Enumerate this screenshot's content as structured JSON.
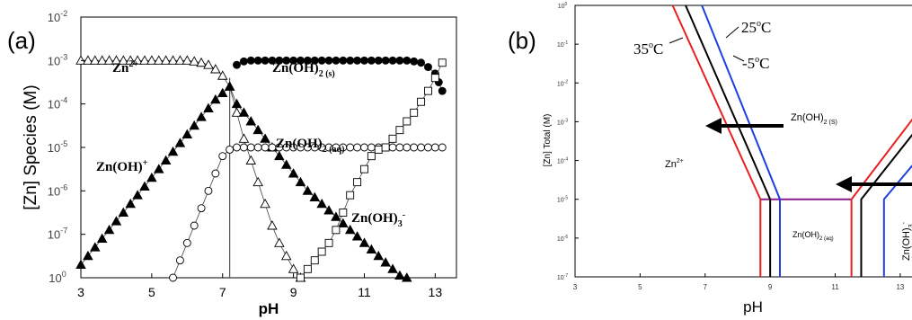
{
  "chart_data": [
    {
      "panel_label": "(a)",
      "type": "scatter",
      "xlabel": "pH",
      "ylabel": "[Zn] Species (M)",
      "xlim": [
        3,
        13.6
      ],
      "ylim_log10": [
        -8,
        -2
      ],
      "x_ticks": [
        "3",
        "5",
        "7",
        "9",
        "11",
        "13"
      ],
      "y_ticks": [
        {
          "base": "10",
          "exp": "-2"
        },
        {
          "base": "10",
          "exp": "-3"
        },
        {
          "base": "10",
          "exp": "-4"
        },
        {
          "base": "10",
          "exp": "-5"
        },
        {
          "base": "10",
          "exp": "-6"
        },
        {
          "base": "10",
          "exp": "-7"
        },
        {
          "base": "10",
          "exp": "0"
        }
      ],
      "vline_x": 7.2,
      "annotations": [
        {
          "label": "Zn2+",
          "base": "Zn",
          "sup": "2+",
          "sub": ""
        },
        {
          "label": "Zn(OH)2 (s)",
          "base": "Zn(OH)",
          "sup": "",
          "sub": "2 (s)"
        },
        {
          "label": "Zn(OH)+",
          "base": "Zn(OH)",
          "sup": "+",
          "sub": ""
        },
        {
          "label": "Zn(OH)2 (aq)",
          "base": "Zn(OH)",
          "sup": "",
          "sub": "2 (aq)"
        },
        {
          "label": "Zn(OH)3-",
          "base": "Zn(OH)",
          "sup": "-",
          "sub": "3"
        }
      ],
      "series": [
        {
          "marker": "open-triangle",
          "label_ref": "Zn2+",
          "x": [
            3.0,
            3.2,
            3.4,
            3.6,
            3.8,
            4.0,
            4.2,
            4.4,
            4.6,
            4.8,
            5.0,
            5.2,
            5.4,
            5.6,
            5.8,
            6.0,
            6.2,
            6.4,
            6.6,
            6.8,
            7.0,
            7.2,
            7.4,
            7.6,
            7.8,
            8.0,
            8.2,
            8.4,
            8.6,
            8.8,
            9.0,
            9.2
          ],
          "y": [
            -3.0,
            -3.0,
            -3.0,
            -3.0,
            -3.0,
            -3.0,
            -3.0,
            -3.0,
            -3.0,
            -3.0,
            -3.0,
            -3.0,
            -3.0,
            -3.0,
            -3.0,
            -3.0,
            -3.02,
            -3.05,
            -3.1,
            -3.2,
            -3.35,
            -3.6,
            -4.2,
            -4.8,
            -5.3,
            -5.8,
            -6.3,
            -6.8,
            -7.2,
            -7.5,
            -7.8,
            -8.0
          ]
        },
        {
          "marker": "filled-triangle",
          "label_ref": "Zn(OH)+",
          "x": [
            3.0,
            3.2,
            3.4,
            3.6,
            3.8,
            4.0,
            4.2,
            4.4,
            4.6,
            4.8,
            5.0,
            5.2,
            5.4,
            5.6,
            5.8,
            6.0,
            6.2,
            6.4,
            6.6,
            6.8,
            7.0,
            7.2,
            7.4,
            7.6,
            7.8,
            8.0,
            8.2,
            8.4,
            8.6,
            8.8,
            9.0,
            9.2,
            9.4,
            9.6,
            9.8,
            10.0,
            10.2,
            10.4,
            10.6,
            10.8,
            11.0,
            11.2,
            11.4,
            11.6,
            11.8,
            12.0,
            12.2
          ],
          "y": [
            -7.7,
            -7.5,
            -7.3,
            -7.1,
            -6.9,
            -6.7,
            -6.5,
            -6.3,
            -6.1,
            -5.9,
            -5.7,
            -5.5,
            -5.3,
            -5.1,
            -4.9,
            -4.7,
            -4.5,
            -4.3,
            -4.1,
            -3.9,
            -3.75,
            -3.6,
            -4.0,
            -4.2,
            -4.4,
            -4.6,
            -4.8,
            -5.0,
            -5.2,
            -5.4,
            -5.6,
            -5.8,
            -6.0,
            -6.15,
            -6.3,
            -6.45,
            -6.6,
            -6.75,
            -6.9,
            -7.05,
            -7.2,
            -7.35,
            -7.5,
            -7.65,
            -7.8,
            -7.95,
            -8.0
          ]
        },
        {
          "marker": "filled-circle",
          "label_ref": "Zn(OH)2 (s)",
          "x": [
            7.4,
            7.6,
            7.8,
            8.0,
            8.2,
            8.4,
            8.6,
            8.8,
            9.0,
            9.2,
            9.4,
            9.6,
            9.8,
            10.0,
            10.2,
            10.4,
            10.6,
            10.8,
            11.0,
            11.2,
            11.4,
            11.6,
            11.8,
            12.0,
            12.2,
            12.4,
            12.6,
            12.8,
            13.0,
            13.1,
            13.2
          ],
          "y": [
            -3.1,
            -3.02,
            -3.0,
            -3.0,
            -3.0,
            -3.0,
            -3.0,
            -3.0,
            -3.0,
            -3.0,
            -3.0,
            -3.0,
            -3.0,
            -3.0,
            -3.0,
            -3.0,
            -3.0,
            -3.0,
            -3.0,
            -3.0,
            -3.0,
            -3.0,
            -3.0,
            -3.0,
            -3.0,
            -3.02,
            -3.05,
            -3.15,
            -3.3,
            -3.5,
            -3.7
          ]
        },
        {
          "marker": "open-circle",
          "label_ref": "Zn(OH)2 (aq)",
          "x": [
            5.6,
            5.8,
            6.0,
            6.2,
            6.4,
            6.6,
            6.8,
            7.0,
            7.2,
            7.4,
            7.6,
            7.8,
            8.0,
            8.2,
            8.4,
            8.6,
            8.8,
            9.0,
            9.2,
            9.4,
            9.6,
            9.8,
            10.0,
            10.2,
            10.4,
            10.6,
            10.8,
            11.0,
            11.2,
            11.4,
            11.6,
            11.8,
            12.0,
            12.2,
            12.4,
            12.6,
            12.8,
            13.0,
            13.2
          ],
          "y": [
            -8.0,
            -7.6,
            -7.2,
            -6.8,
            -6.4,
            -6.0,
            -5.6,
            -5.2,
            -5.05,
            -5.0,
            -5.0,
            -5.0,
            -5.0,
            -5.0,
            -5.0,
            -5.0,
            -5.0,
            -5.0,
            -5.0,
            -5.0,
            -5.0,
            -5.0,
            -5.0,
            -5.0,
            -5.0,
            -5.0,
            -5.0,
            -5.0,
            -5.0,
            -5.0,
            -5.0,
            -5.0,
            -5.0,
            -5.0,
            -5.0,
            -5.0,
            -5.0,
            -5.0,
            -5.0
          ]
        },
        {
          "marker": "open-square",
          "label_ref": "Zn(OH)3-",
          "x": [
            9.2,
            9.4,
            9.6,
            9.8,
            10.0,
            10.2,
            10.4,
            10.6,
            10.8,
            11.0,
            11.2,
            11.4,
            11.6,
            11.8,
            12.0,
            12.2,
            12.4,
            12.6,
            12.8,
            13.0,
            13.2
          ],
          "y": [
            -8.0,
            -7.8,
            -7.6,
            -7.4,
            -7.2,
            -6.9,
            -6.5,
            -6.1,
            -5.8,
            -5.5,
            -5.2,
            -5.05,
            -5.0,
            -4.8,
            -4.6,
            -4.4,
            -4.2,
            -3.95,
            -3.7,
            -3.4,
            -3.05
          ]
        }
      ]
    },
    {
      "panel_label": "(b)",
      "type": "line",
      "xlabel": "pH",
      "ylabel": "[Zn] Total (M)",
      "xlim": [
        3,
        13.5
      ],
      "ylim_log10": [
        -7,
        0
      ],
      "x_ticks": [
        "3",
        "5",
        "7",
        "9",
        "11",
        "13"
      ],
      "y_ticks": [
        {
          "base": "10",
          "exp": "0"
        },
        {
          "base": "10",
          "exp": "-1"
        },
        {
          "base": "10",
          "exp": "-2"
        },
        {
          "base": "10",
          "exp": "-3"
        },
        {
          "base": "10",
          "exp": "-4"
        },
        {
          "base": "10",
          "exp": "-5"
        },
        {
          "base": "10",
          "exp": "-6"
        },
        {
          "base": "10",
          "exp": "-7"
        }
      ],
      "annotations": {
        "t35": {
          "base": "35",
          "sup": "o",
          "tail": "C"
        },
        "t25": {
          "base": "25",
          "sup": "o",
          "tail": "C"
        },
        "t5": {
          "base": "-5",
          "sup": "o",
          "tail": "C"
        },
        "zn2": {
          "base": "Zn",
          "sup": "2+",
          "sub": ""
        },
        "s": {
          "base": "Zn(OH)",
          "sup": "",
          "sub": "2 (S)"
        },
        "aq": {
          "base": "Zn(OH)",
          "sup": "",
          "sub": "2 (aq)"
        },
        "oh3": {
          "base": "Zn(OH)",
          "sup": "-",
          "sub": "3"
        }
      },
      "series": [
        {
          "color": "#e8201f",
          "label_ref": "t35",
          "x": [
            6.0,
            8.7,
            8.7
          ],
          "y": [
            0.0,
            -5.0,
            -7.0
          ],
          "x2": [
            11.5,
            11.5,
            13.5
          ],
          "y2": [
            -7.0,
            -5.0,
            -2.8
          ]
        },
        {
          "color": "#000000",
          "label_ref": "t25",
          "x": [
            6.4,
            9.0,
            9.0
          ],
          "y": [
            0.0,
            -5.0,
            -7.0
          ],
          "x2": [
            11.8,
            11.8,
            13.5
          ],
          "y2": [
            -7.0,
            -5.0,
            -3.2
          ]
        },
        {
          "color": "#1f3fe0",
          "label_ref": "t5",
          "x": [
            6.9,
            9.3,
            9.3
          ],
          "y": [
            0.0,
            -5.0,
            -7.0
          ],
          "x2": [
            12.5,
            12.5,
            13.5
          ],
          "y2": [
            -7.0,
            -5.0,
            -4.0
          ]
        }
      ],
      "plateau_color": "#8b1a8b",
      "plateau": {
        "x": [
          8.7,
          11.5
        ],
        "y": -5.0
      }
    }
  ]
}
